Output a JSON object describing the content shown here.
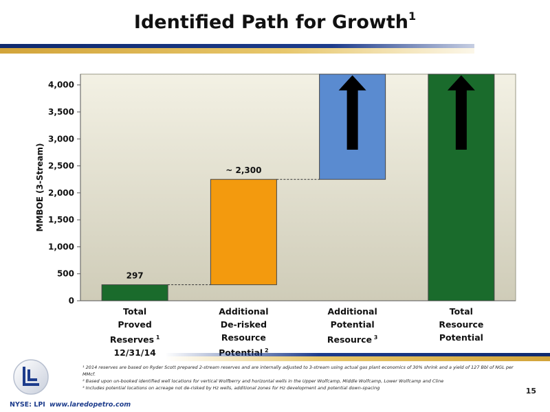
{
  "title": "Identified Path for Growth",
  "title_sup": "1",
  "colors": {
    "plot_top": "#f3f1e4",
    "plot_bottom": "#cfccb8",
    "green": "#1a6b2c",
    "orange": "#f39a0e",
    "blue": "#5a8bd0",
    "arrow": "#000000"
  },
  "chart_data": {
    "type": "bar",
    "subtype": "waterfall",
    "ylabel": "MMBOE (3-Stream)",
    "ylim": [
      0,
      4200
    ],
    "yticks": [
      0,
      500,
      1000,
      1500,
      2000,
      2500,
      3000,
      3500,
      4000
    ],
    "ytick_labels": [
      "0",
      "500",
      "1,000",
      "1,500",
      "2,000",
      "2,500",
      "3,000",
      "3,500",
      "4,000"
    ],
    "grid": false,
    "categories": [
      {
        "lines": [
          "Total",
          "Proved",
          "Reserves"
        ],
        "last": "12/31/14",
        "sup": "1"
      },
      {
        "lines": [
          "Additional",
          "De-risked",
          "Resource"
        ],
        "last": "Potential",
        "sup": "2"
      },
      {
        "lines": [
          "Additional",
          "Potential"
        ],
        "last": "Resource",
        "sup": "3"
      },
      {
        "lines": [
          "Total",
          "Resource"
        ],
        "last": "Potential",
        "sup": ""
      }
    ],
    "bars": [
      {
        "base": 0,
        "top": 297,
        "color": "#1a6b2c",
        "label": "297",
        "arrow": false
      },
      {
        "base": 297,
        "top": 2250,
        "color": "#f39a0e",
        "label": "~ 2,300",
        "arrow": false
      },
      {
        "base": 2250,
        "top": 4200,
        "color": "#5a8bd0",
        "label": "",
        "arrow": true,
        "arrow_range": [
          2800,
          4180
        ]
      },
      {
        "base": 0,
        "top": 4200,
        "color": "#1a6b2c",
        "label": "",
        "arrow": true,
        "arrow_range": [
          2800,
          4180
        ]
      }
    ],
    "connectors": [
      297,
      2250
    ]
  },
  "footnotes": [
    "¹ 2014 reserves are based on Ryder Scott prepared 2-stream reserves and are internally adjusted to 3-stream using actual gas plant economics of 30% shrink and a yield of 127 Bbl of NGL per MMcf.",
    "² Based upon un-booked identified well locations for vertical Wolfberry and horizontal wells in the Upper Wolfcamp, Middle Wolfcamp, Lower Wolfcamp and Cline",
    "³ Includes potential locations on acreage not de-risked by Hz wells, additional zones for Hz development and potential down-spacing"
  ],
  "page_number": "15",
  "footer": {
    "ticker": "NYSE: LPI",
    "website": "www.laredopetro.com"
  },
  "logo_icon": "laredo-logo-icon"
}
